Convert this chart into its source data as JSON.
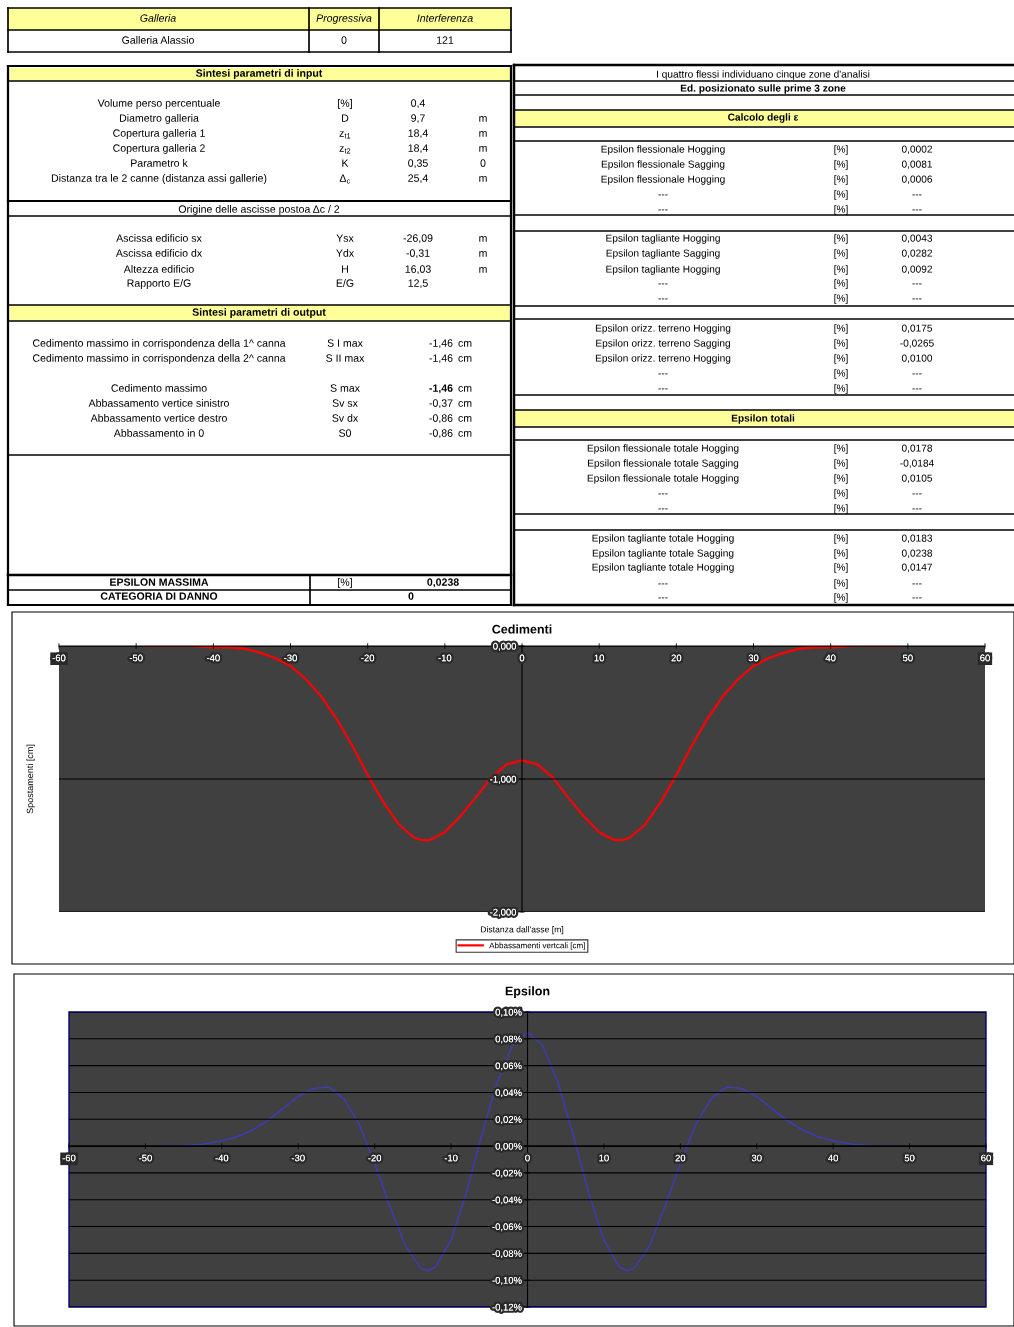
{
  "chart_data": [
    {
      "type": "other",
      "annotations": [
        "Galleria",
        "Progressiva",
        "Interferenza",
        "Galleria Alassio",
        "0",
        "121"
      ]
    },
    {
      "type": "other",
      "annotations": [
        "Sintesi parametri di input",
        "Volume perso percentuale",
        "[%]",
        "0,4",
        "Diametro galleria",
        "D",
        "9,7",
        "m",
        "Copertura galleria 1",
        "z$_{t1}$",
        "18,4",
        "m",
        "Copertura galleria 2",
        "z$_{t2}$",
        "18,4",
        "m",
        "Parametro k",
        "K",
        "0,35",
        "0",
        "Distanza tra le 2 canne (distanza assi gallerie)",
        "Δ$_{c}$",
        "25,4",
        "m",
        "Origine delle ascisse postoa Δc / 2",
        "Ascissa edificio sx",
        "Ysx",
        "-26,09",
        "m",
        "Ascissa edificio dx",
        "Ydx",
        "-0,31",
        "m",
        "Altezza edificio",
        "H",
        "16,03",
        "m",
        "Rapporto E/G",
        "E/G",
        "12,5",
        "Sintesi parametri di output",
        "Cedimento massimo in corrispondenza della 1^ canna",
        "S I max",
        "-1,46",
        "cm",
        "Cedimento massimo in corrispondenza della 2^ canna",
        "S II max",
        "-1,46",
        "cm",
        "Cedimento massimo",
        "S max",
        "-1,46",
        "cm",
        "Abbassamento vertice sinistro",
        "Sv sx",
        "-0,37",
        "cm",
        "Abbassamento vertice destro",
        "Sv dx",
        "-0,86",
        "cm",
        "Abbassamento in 0",
        "S0",
        "-0,86",
        "cm",
        "EPSILON MASSIMA",
        "[%]",
        "0,0238",
        "CATEGORIA DI DANNO",
        "0"
      ]
    },
    {
      "type": "other",
      "annotations": [
        "I quattro flessi individuano cinque zone d'analisi",
        "Ed. posizionato sulle prime 3 zone",
        "Calcolo degli ε",
        "Epsilon flessionale Hogging",
        "[%]",
        "0,0002",
        "Epsilon flessionale Sagging",
        "[%]",
        "0,0081",
        "Epsilon flessionale Hogging",
        "[%]",
        "0,0006",
        "---",
        "[%]",
        "---",
        "---",
        "[%]",
        "---",
        "Epsilon tagliante Hogging",
        "[%]",
        "0,0043",
        "Epsilon tagliante Sagging",
        "[%]",
        "0,0282",
        "Epsilon tagliante Hogging",
        "[%]",
        "0,0092",
        "---",
        "[%]",
        "---",
        "---",
        "[%]",
        "---",
        "Epsilon orizz. terreno Hogging",
        "[%]",
        "0,0175",
        "Epsilon orizz. terreno Sagging",
        "[%]",
        "-0,0265",
        "Epsilon orizz. terreno Hogging",
        "[%]",
        "0,0100",
        "---",
        "[%]",
        "---",
        "---",
        "[%]",
        "---",
        "Epsilon totali",
        "Epsilon flessionale totale Hogging",
        "[%]",
        "0,0178",
        "Epsilon flessionale totale Sagging",
        "[%]",
        "-0,0184",
        "Epsilon flessionale totale Hogging",
        "[%]",
        "0,0105",
        "---",
        "[%]",
        "---",
        "---",
        "[%]",
        "---",
        "Epsilon tagliante totale Hogging",
        "[%]",
        "0,0183",
        "Epsilon tagliante totale Sagging",
        "[%]",
        "0,0238",
        "Epsilon tagliante totale Hogging",
        "[%]",
        "0,0147",
        "---",
        "[%]",
        "---",
        "---",
        "[%]",
        "---"
      ]
    },
    {
      "type": "line",
      "title": "Cedimenti",
      "xlabel": "Distanza dall'asse [m]",
      "ylabel": "Spostamenti [cm]",
      "legend": "bottom",
      "grid": "y",
      "xlim": [
        -60,
        60
      ],
      "xticks": [
        -60,
        -50,
        -40,
        -30,
        -20,
        -10,
        0,
        10,
        20,
        30,
        40,
        50,
        60
      ],
      "ylim": [
        -2,
        0
      ],
      "yticks": [
        {
          "value": 0,
          "label": "0,000"
        },
        {
          "value": -1,
          "label": "-1,000"
        },
        {
          "value": -2,
          "label": "-2,000"
        }
      ],
      "x": [
        -49,
        -46,
        -43,
        -40,
        -38,
        -36,
        -34,
        -32,
        -30,
        -28,
        -26,
        -24,
        -22,
        -20,
        -18,
        -16,
        -14,
        -13,
        -12,
        -10,
        -8,
        -6,
        -4,
        -2,
        0,
        2,
        4,
        6,
        8,
        10,
        12,
        13,
        14,
        16,
        18,
        20,
        22,
        24,
        26,
        28,
        30,
        32,
        34,
        36,
        38,
        40,
        43,
        46,
        49
      ],
      "series": [
        {
          "name": "Abbassamenti vertcali [cm]",
          "color": "#ff0000",
          "values": [
            0,
            0,
            0,
            -0.01,
            -0.01,
            -0.02,
            -0.05,
            -0.09,
            -0.15,
            -0.25,
            -0.38,
            -0.55,
            -0.75,
            -0.97,
            -1.17,
            -1.34,
            -1.44,
            -1.46,
            -1.46,
            -1.4,
            -1.28,
            -1.14,
            -0.99,
            -0.89,
            -0.86,
            -0.89,
            -0.99,
            -1.14,
            -1.28,
            -1.4,
            -1.46,
            -1.46,
            -1.44,
            -1.34,
            -1.17,
            -0.97,
            -0.75,
            -0.55,
            -0.38,
            -0.25,
            -0.15,
            -0.09,
            -0.05,
            -0.02,
            -0.01,
            -0.01,
            0,
            0,
            0
          ]
        }
      ]
    },
    {
      "type": "line",
      "title": "Epsilon",
      "grid": "y",
      "xlim": [
        -60,
        60
      ],
      "xticks": [
        -60,
        -50,
        -40,
        -30,
        -20,
        -10,
        0,
        10,
        20,
        30,
        40,
        50,
        60
      ],
      "ylim": [
        -0.12,
        0.1
      ],
      "yticks": [
        {
          "value": 0.1,
          "label": "0,10%"
        },
        {
          "value": 0.08,
          "label": "0,08%"
        },
        {
          "value": 0.06,
          "label": "0,06%"
        },
        {
          "value": 0.04,
          "label": "0,04%"
        },
        {
          "value": 0.02,
          "label": "0,02%"
        },
        {
          "value": 0,
          "label": "0,00%"
        },
        {
          "value": -0.02,
          "label": "-0,02%"
        },
        {
          "value": -0.04,
          "label": "-0,04%"
        },
        {
          "value": -0.06,
          "label": "-0,06%"
        },
        {
          "value": -0.08,
          "label": "-0,08%"
        },
        {
          "value": -0.1,
          "label": "-0,10%"
        },
        {
          "value": -0.12,
          "label": "-0,12%"
        }
      ],
      "x": [
        -49,
        -46,
        -43,
        -40,
        -38,
        -36,
        -34,
        -32,
        -30,
        -28,
        -26,
        -24,
        -22,
        -20,
        -18,
        -16,
        -14,
        -13,
        -12,
        -10,
        -8,
        -6,
        -4,
        -2,
        0,
        2,
        4,
        6,
        8,
        10,
        12,
        13,
        14,
        16,
        18,
        20,
        22,
        24,
        26,
        28,
        30,
        32,
        34,
        36,
        38,
        40,
        43,
        46,
        49
      ],
      "series": [
        {
          "color": "#3c3cb4",
          "values": [
            0,
            0,
            0.001,
            0.004,
            0.007,
            0.012,
            0.019,
            0.028,
            0.037,
            0.043,
            0.044,
            0.035,
            0.016,
            -0.013,
            -0.045,
            -0.074,
            -0.091,
            -0.093,
            -0.09,
            -0.07,
            -0.035,
            0.008,
            0.047,
            0.075,
            0.085,
            0.075,
            0.047,
            0.008,
            -0.035,
            -0.07,
            -0.09,
            -0.093,
            -0.091,
            -0.074,
            -0.045,
            -0.013,
            0.016,
            0.035,
            0.044,
            0.043,
            0.037,
            0.028,
            0.019,
            0.012,
            0.007,
            0.004,
            0.001,
            0,
            0
          ]
        }
      ]
    }
  ]
}
